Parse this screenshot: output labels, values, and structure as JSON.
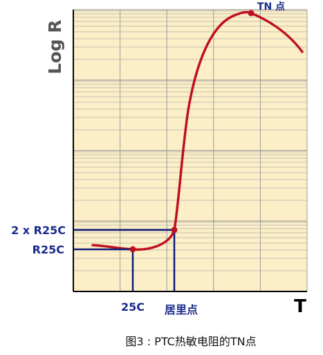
{
  "chart_data": {
    "type": "line",
    "ylabel": "Log R",
    "xlabel": "T",
    "y_markers": [
      "2 x R25C",
      "R25C"
    ],
    "x_markers": [
      "25C",
      "居里点"
    ],
    "peak_label": "TN 点",
    "caption": "图3 : PTC热敏电阻的TN点",
    "grid": true,
    "log_scale_y": true,
    "colors": {
      "plot_bg": "#fcefc7",
      "grid": "#a8a8a8",
      "curve": "#bf1020",
      "marker_lines": "#0a1a78",
      "label_blue": "#1a2a8a",
      "axis_label": "#555555"
    }
  }
}
